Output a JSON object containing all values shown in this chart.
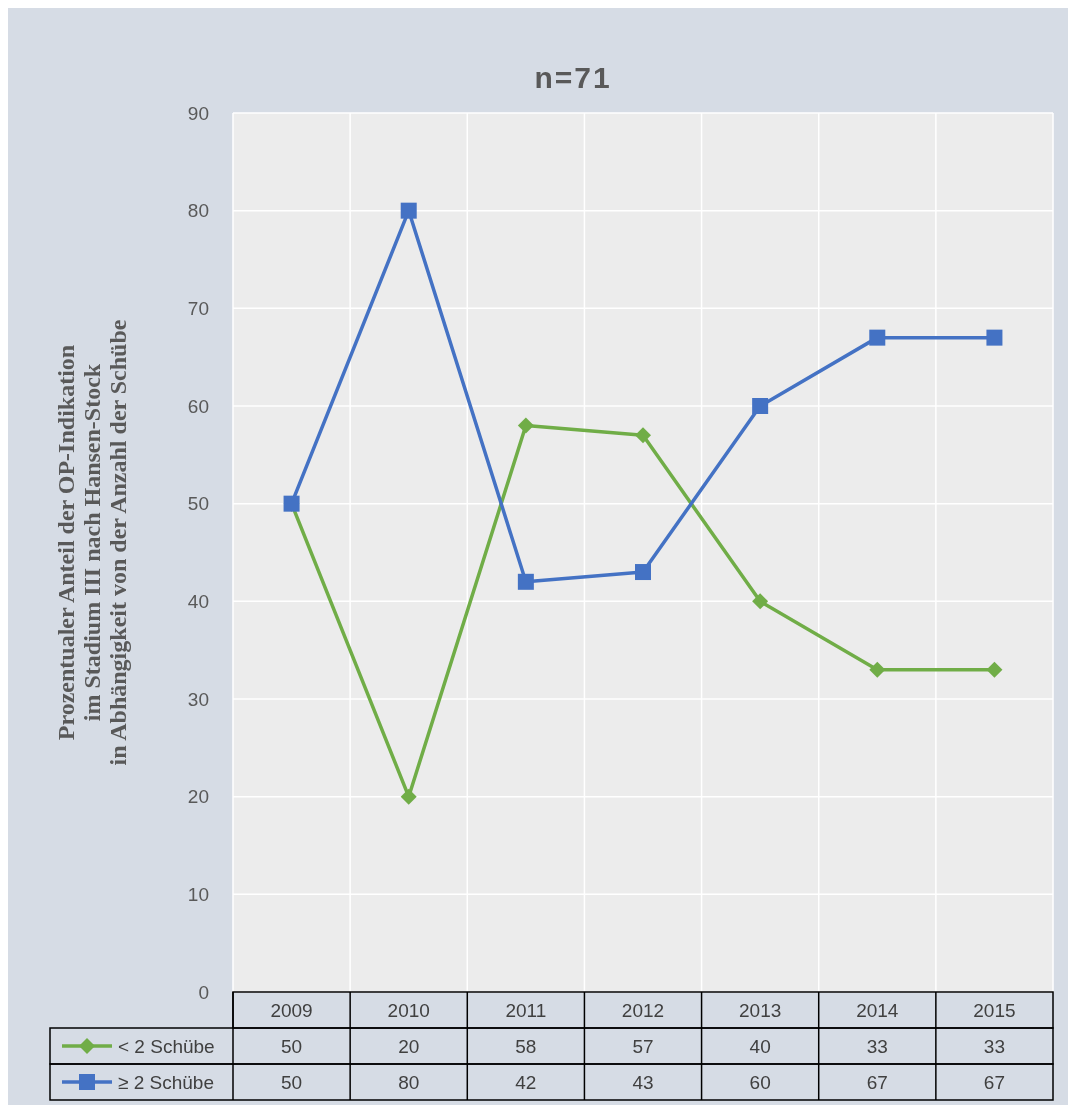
{
  "chart_data": {
    "type": "line",
    "title": "n=71",
    "ylabel": "Prozentualer Anteil der OP-Indikation\nim Stadium III nach Hansen-Stock\nin Abhängigkeit von der Anzahl der Schübe",
    "categories": [
      "2009",
      "2010",
      "2011",
      "2012",
      "2013",
      "2014",
      "2015"
    ],
    "series": [
      {
        "name": "< 2 Schübe",
        "color": "#70ad47",
        "marker": "diamond",
        "values": [
          50,
          20,
          58,
          57,
          40,
          33,
          33
        ]
      },
      {
        "name": "≥ 2 Schübe",
        "color": "#4472c4",
        "marker": "square",
        "values": [
          50,
          80,
          42,
          43,
          60,
          67,
          67
        ]
      }
    ],
    "ylim": [
      0,
      90
    ],
    "yticks": [
      0,
      10,
      20,
      30,
      40,
      50,
      60,
      70,
      80,
      90
    ],
    "grid": true,
    "legend": "bottom",
    "data_labels": true
  }
}
